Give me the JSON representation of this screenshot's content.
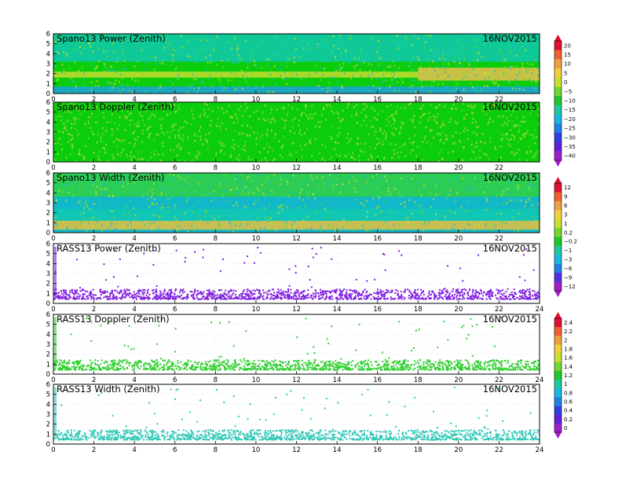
{
  "chart_data": [
    {
      "type": "heatmap",
      "title": "Spano13 Power (Zenith)",
      "date": "16NOV2015",
      "x_ticks": [
        "0",
        "2",
        "4",
        "6",
        "8",
        "10",
        "12",
        "14",
        "16",
        "18",
        "20",
        "22"
      ],
      "y_ticks": [
        "0",
        "1",
        "2",
        "3",
        "4",
        "5",
        "6"
      ],
      "xlim": [
        0,
        24
      ],
      "ylim": [
        0,
        6
      ],
      "colorbar": "A",
      "background": "#0ccd0c",
      "features": [
        {
          "label": "low layer",
          "x": [
            0,
            24
          ],
          "y": [
            0.0,
            0.7
          ],
          "color": "#1fa0e0"
        },
        {
          "label": "bright band",
          "x": [
            0,
            18
          ],
          "y": [
            1.6,
            2.2
          ],
          "color": "#c8dc30"
        },
        {
          "label": "bright band",
          "x": [
            18,
            24
          ],
          "y": [
            1.3,
            2.6
          ],
          "color": "#e8c050"
        },
        {
          "label": "upper",
          "x": [
            0,
            24
          ],
          "y": [
            3.2,
            6.0
          ],
          "color": "#10c8b0"
        }
      ]
    },
    {
      "type": "heatmap",
      "title": "Spano13 Doppler (Zenith)",
      "date": "16NOV2015",
      "x_ticks": [
        "0",
        "2",
        "4",
        "6",
        "8",
        "10",
        "12",
        "14",
        "16",
        "18",
        "20",
        "22"
      ],
      "y_ticks": [
        "0",
        "1",
        "2",
        "3",
        "4",
        "5",
        "6"
      ],
      "xlim": [
        0,
        24
      ],
      "ylim": [
        0,
        6
      ],
      "colorbar": "A",
      "background": "#0ccd0c",
      "features": []
    },
    {
      "type": "heatmap",
      "title": "Spano13 Width (Zenith)",
      "date": "16NOV2015",
      "x_ticks": [
        "0",
        "2",
        "4",
        "6",
        "8",
        "10",
        "12",
        "14",
        "16",
        "18",
        "20",
        "22"
      ],
      "y_ticks": [
        "0",
        "1",
        "2",
        "3",
        "4",
        "5",
        "6"
      ],
      "xlim": [
        0,
        24
      ],
      "ylim": [
        0,
        6
      ],
      "colorbar": "B",
      "background": "#10b8c8",
      "features": [
        {
          "label": "low layer",
          "x": [
            0,
            24
          ],
          "y": [
            0.3,
            1.2
          ],
          "color": "#e8c040"
        },
        {
          "label": "mid",
          "x": [
            0,
            24
          ],
          "y": [
            1.2,
            2.4
          ],
          "color": "#10c8b0"
        },
        {
          "label": "upper",
          "x": [
            0,
            24
          ],
          "y": [
            3.6,
            6.0
          ],
          "color": "#30d040"
        }
      ]
    },
    {
      "type": "scatter",
      "title": "RASS13 Power (Zenith)",
      "date": "16NOV2015",
      "x_ticks": [
        "0",
        "2",
        "4",
        "6",
        "8",
        "10",
        "12",
        "14",
        "16",
        "18",
        "20",
        "22",
        "24"
      ],
      "y_ticks": [
        "0",
        "1",
        "2",
        "3",
        "4",
        "5",
        "6"
      ],
      "xlim": [
        0,
        24
      ],
      "ylim": [
        0,
        6
      ],
      "colorbar": "B",
      "point_color": "#8020e0",
      "band": [
        0.5,
        1.5
      ]
    },
    {
      "type": "scatter",
      "title": "RASS13 Doppler (Zenith)",
      "date": "16NOV2015",
      "x_ticks": [
        "0",
        "2",
        "4",
        "6",
        "8",
        "10",
        "12",
        "14",
        "16",
        "18",
        "20",
        "22",
        "24"
      ],
      "y_ticks": [
        "0",
        "1",
        "2",
        "3",
        "4",
        "5",
        "6"
      ],
      "xlim": [
        0,
        24
      ],
      "ylim": [
        0,
        6
      ],
      "colorbar": "C",
      "point_color": "#30d030",
      "band": [
        0.5,
        1.5
      ]
    },
    {
      "type": "scatter",
      "title": "RASS13 Width (Zenith)",
      "date": "16NOV2015",
      "x_ticks": [
        "0",
        "2",
        "4",
        "6",
        "8",
        "10",
        "12",
        "14",
        "16",
        "18",
        "20",
        "22",
        "24"
      ],
      "y_ticks": [
        "0",
        "1",
        "2",
        "3",
        "4",
        "5",
        "6"
      ],
      "xlim": [
        0,
        24
      ],
      "ylim": [
        0,
        6
      ],
      "colorbar": "C",
      "point_color": "#30c8b8",
      "band": [
        0.5,
        1.5
      ]
    }
  ],
  "colorbars": {
    "A": {
      "labels": [
        "20",
        "15",
        "10",
        "5",
        "0",
        "−5",
        "−10",
        "−15",
        "−20",
        "−25",
        "−30",
        "−35",
        "−40"
      ],
      "colors": [
        "#e01030",
        "#f06030",
        "#f0a040",
        "#f0d040",
        "#c8e030",
        "#70d830",
        "#20c828",
        "#20c8a0",
        "#18b8e0",
        "#2080e8",
        "#3040e0",
        "#6020d8",
        "#a020c8"
      ]
    },
    "B": {
      "labels": [
        "12",
        "9",
        "6",
        "3",
        "1",
        "0.2",
        "−0.2",
        "−1",
        "−3",
        "−6",
        "−9",
        "−12"
      ],
      "colors": [
        "#e01030",
        "#f06030",
        "#f0a040",
        "#f0d040",
        "#c8e030",
        "#70d830",
        "#20c828",
        "#20c8a0",
        "#18b8e0",
        "#2080e8",
        "#5030e0",
        "#a020c8"
      ]
    },
    "C": {
      "labels": [
        "2.4",
        "2.2",
        "2",
        "1.8",
        "1.6",
        "1.4",
        "1.2",
        "1",
        "0.8",
        "0.6",
        "0.4",
        "0.2",
        "0"
      ],
      "colors": [
        "#e01030",
        "#f06030",
        "#f0a040",
        "#f0d040",
        "#c8e030",
        "#70d830",
        "#20c828",
        "#20c8a0",
        "#18b8e0",
        "#2080e8",
        "#3040e0",
        "#6020d8",
        "#a020c8"
      ]
    }
  }
}
